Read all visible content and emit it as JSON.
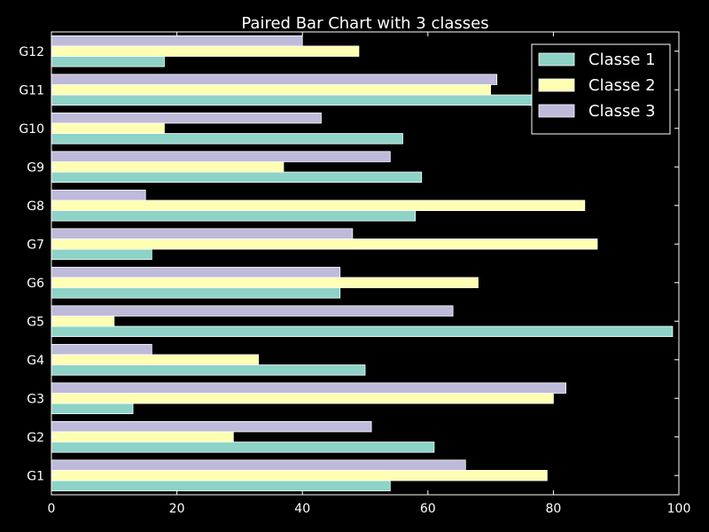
{
  "chart_data": {
    "type": "bar",
    "orientation": "horizontal",
    "title": "Paired Bar Chart with 3 classes",
    "xlabel": "",
    "ylabel": "",
    "xlim": [
      0,
      100
    ],
    "x_ticks": [
      0,
      20,
      40,
      60,
      80,
      100
    ],
    "categories": [
      "G1",
      "G2",
      "G3",
      "G4",
      "G5",
      "G6",
      "G7",
      "G8",
      "G9",
      "G10",
      "G11",
      "G12"
    ],
    "series": [
      {
        "name": "Classe 1",
        "color": "#8dd3c7",
        "values": [
          54,
          61,
          13,
          50,
          99,
          46,
          16,
          58,
          59,
          56,
          77,
          18
        ]
      },
      {
        "name": "Classe 2",
        "color": "#ffffb3",
        "values": [
          79,
          29,
          80,
          33,
          10,
          68,
          87,
          85,
          37,
          18,
          70,
          49
        ]
      },
      {
        "name": "Classe 3",
        "color": "#bebada",
        "values": [
          66,
          51,
          82,
          16,
          64,
          46,
          48,
          15,
          54,
          43,
          71,
          40
        ]
      }
    ],
    "grid": false,
    "legend_position": "top-right",
    "background": "#000000",
    "foreground": "#ffffff"
  }
}
